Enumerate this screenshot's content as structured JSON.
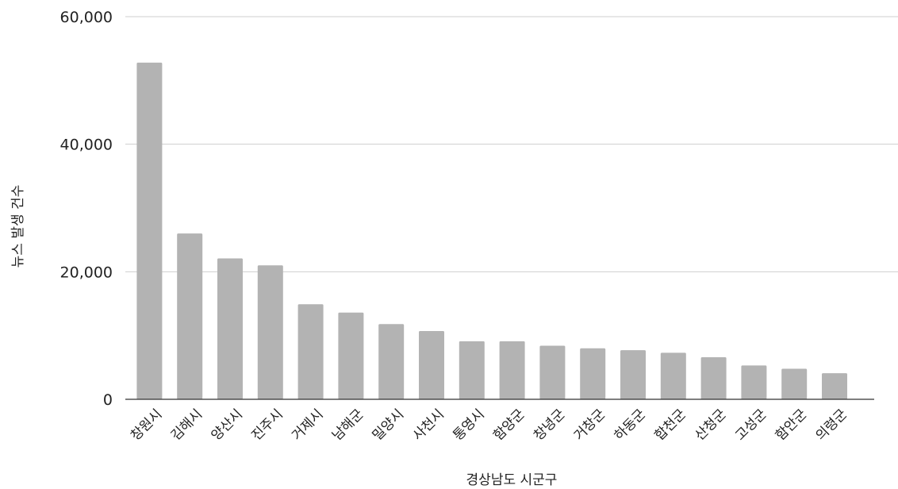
{
  "chart_data": {
    "type": "bar",
    "title": "",
    "xlabel": "경상남도 시군구",
    "ylabel": "뉴스 발생 건수",
    "ylim": [
      0,
      60000
    ],
    "yticks": [
      0,
      20000,
      40000,
      60000
    ],
    "ytick_labels": [
      "0",
      "20,000",
      "40,000",
      "60,000"
    ],
    "grid": true,
    "legend": "none",
    "bar_color": "#b3b3b3",
    "categories": [
      "창원시",
      "김해시",
      "양산시",
      "진주시",
      "거제시",
      "남해군",
      "밀양시",
      "사천시",
      "통영시",
      "함양군",
      "창녕군",
      "거창군",
      "하동군",
      "합천군",
      "산청군",
      "고성군",
      "함안군",
      "의령군"
    ],
    "values": [
      52800,
      26000,
      22100,
      21000,
      14900,
      13600,
      11800,
      10700,
      9100,
      9100,
      8400,
      8000,
      7700,
      7300,
      6600,
      5300,
      4800,
      4100
    ]
  }
}
